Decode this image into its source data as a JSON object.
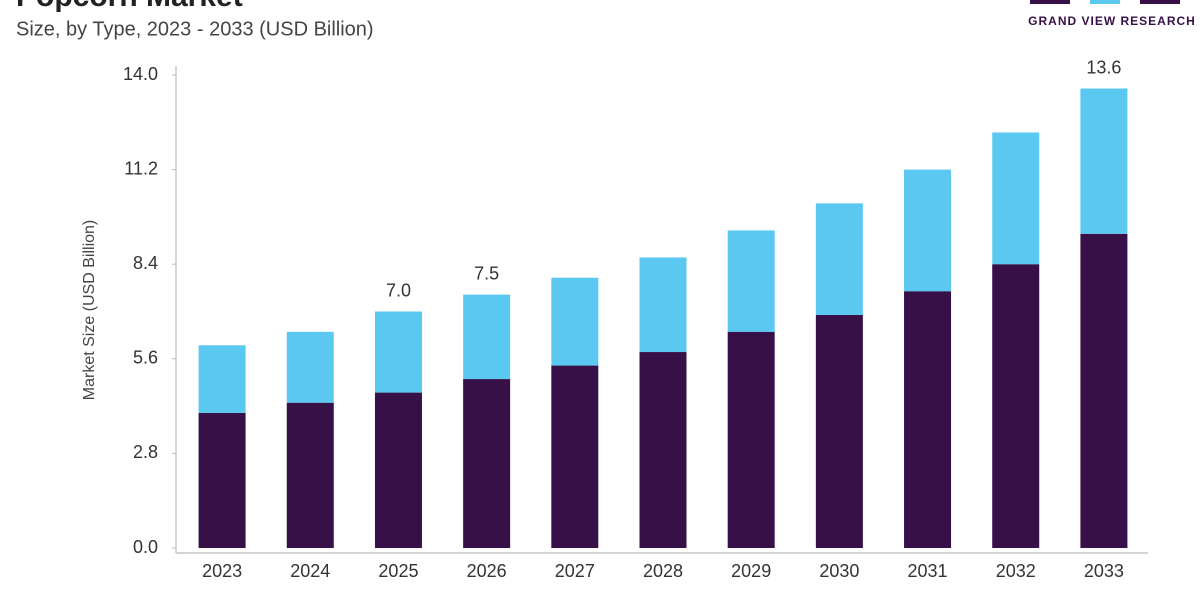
{
  "chart_data": {
    "type": "stacked_bar",
    "title": "Popcorn Market",
    "subtitle": "Size, by Type, 2023 - 2033 (USD Billion)",
    "brand": "GRAND VIEW RESEARCH",
    "y_label": "Market Size (USD Billion)",
    "categories": [
      "2023",
      "2024",
      "2025",
      "2026",
      "2027",
      "2028",
      "2029",
      "2030",
      "2031",
      "2032",
      "2033"
    ],
    "series": [
      {
        "color": "#361046",
        "values": [
          4.0,
          4.3,
          4.6,
          5.0,
          5.4,
          5.8,
          6.4,
          6.9,
          7.6,
          8.4,
          9.3
        ]
      },
      {
        "color": "#5bc8f2",
        "values": [
          2.0,
          2.1,
          2.4,
          2.5,
          2.6,
          2.8,
          3.0,
          3.3,
          3.6,
          3.9,
          4.3
        ]
      }
    ],
    "annotations": [
      {
        "category": "2025",
        "text": "7.0"
      },
      {
        "category": "2026",
        "text": "7.5"
      },
      {
        "category": "2033",
        "text": "13.6"
      }
    ],
    "ylim": [
      0,
      14
    ],
    "yticks": [
      {
        "value": 0,
        "label": "0.0"
      },
      2.8,
      5.6,
      8.4,
      11.2,
      {
        "value": 14,
        "label": "14.0"
      }
    ],
    "grid": false
  }
}
